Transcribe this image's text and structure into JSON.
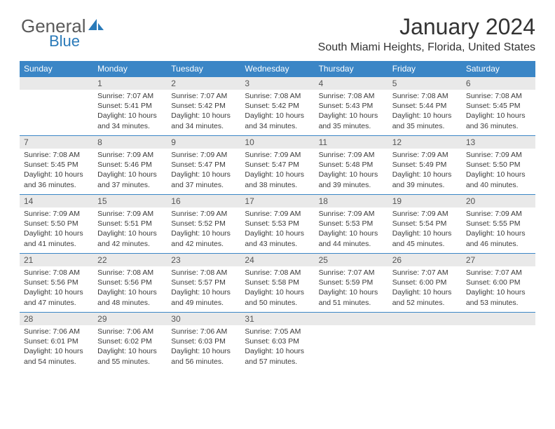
{
  "brand": {
    "text1": "General",
    "text2": "Blue",
    "color1": "#5a5a5a",
    "color2": "#2a7ab9"
  },
  "title": "January 2024",
  "location": "South Miami Heights, Florida, United States",
  "header_bg": "#3b86c6",
  "header_fg": "#ffffff",
  "daynum_bg": "#e9e9e9",
  "border_color": "#3b86c6",
  "body_font_size": 10.5,
  "columns": [
    "Sunday",
    "Monday",
    "Tuesday",
    "Wednesday",
    "Thursday",
    "Friday",
    "Saturday"
  ],
  "weeks": [
    [
      {
        "n": "",
        "sunrise": "",
        "sunset": "",
        "daylight": ""
      },
      {
        "n": "1",
        "sunrise": "Sunrise: 7:07 AM",
        "sunset": "Sunset: 5:41 PM",
        "daylight": "Daylight: 10 hours and 34 minutes."
      },
      {
        "n": "2",
        "sunrise": "Sunrise: 7:07 AM",
        "sunset": "Sunset: 5:42 PM",
        "daylight": "Daylight: 10 hours and 34 minutes."
      },
      {
        "n": "3",
        "sunrise": "Sunrise: 7:08 AM",
        "sunset": "Sunset: 5:42 PM",
        "daylight": "Daylight: 10 hours and 34 minutes."
      },
      {
        "n": "4",
        "sunrise": "Sunrise: 7:08 AM",
        "sunset": "Sunset: 5:43 PM",
        "daylight": "Daylight: 10 hours and 35 minutes."
      },
      {
        "n": "5",
        "sunrise": "Sunrise: 7:08 AM",
        "sunset": "Sunset: 5:44 PM",
        "daylight": "Daylight: 10 hours and 35 minutes."
      },
      {
        "n": "6",
        "sunrise": "Sunrise: 7:08 AM",
        "sunset": "Sunset: 5:45 PM",
        "daylight": "Daylight: 10 hours and 36 minutes."
      }
    ],
    [
      {
        "n": "7",
        "sunrise": "Sunrise: 7:08 AM",
        "sunset": "Sunset: 5:45 PM",
        "daylight": "Daylight: 10 hours and 36 minutes."
      },
      {
        "n": "8",
        "sunrise": "Sunrise: 7:09 AM",
        "sunset": "Sunset: 5:46 PM",
        "daylight": "Daylight: 10 hours and 37 minutes."
      },
      {
        "n": "9",
        "sunrise": "Sunrise: 7:09 AM",
        "sunset": "Sunset: 5:47 PM",
        "daylight": "Daylight: 10 hours and 37 minutes."
      },
      {
        "n": "10",
        "sunrise": "Sunrise: 7:09 AM",
        "sunset": "Sunset: 5:47 PM",
        "daylight": "Daylight: 10 hours and 38 minutes."
      },
      {
        "n": "11",
        "sunrise": "Sunrise: 7:09 AM",
        "sunset": "Sunset: 5:48 PM",
        "daylight": "Daylight: 10 hours and 39 minutes."
      },
      {
        "n": "12",
        "sunrise": "Sunrise: 7:09 AM",
        "sunset": "Sunset: 5:49 PM",
        "daylight": "Daylight: 10 hours and 39 minutes."
      },
      {
        "n": "13",
        "sunrise": "Sunrise: 7:09 AM",
        "sunset": "Sunset: 5:50 PM",
        "daylight": "Daylight: 10 hours and 40 minutes."
      }
    ],
    [
      {
        "n": "14",
        "sunrise": "Sunrise: 7:09 AM",
        "sunset": "Sunset: 5:50 PM",
        "daylight": "Daylight: 10 hours and 41 minutes."
      },
      {
        "n": "15",
        "sunrise": "Sunrise: 7:09 AM",
        "sunset": "Sunset: 5:51 PM",
        "daylight": "Daylight: 10 hours and 42 minutes."
      },
      {
        "n": "16",
        "sunrise": "Sunrise: 7:09 AM",
        "sunset": "Sunset: 5:52 PM",
        "daylight": "Daylight: 10 hours and 42 minutes."
      },
      {
        "n": "17",
        "sunrise": "Sunrise: 7:09 AM",
        "sunset": "Sunset: 5:53 PM",
        "daylight": "Daylight: 10 hours and 43 minutes."
      },
      {
        "n": "18",
        "sunrise": "Sunrise: 7:09 AM",
        "sunset": "Sunset: 5:53 PM",
        "daylight": "Daylight: 10 hours and 44 minutes."
      },
      {
        "n": "19",
        "sunrise": "Sunrise: 7:09 AM",
        "sunset": "Sunset: 5:54 PM",
        "daylight": "Daylight: 10 hours and 45 minutes."
      },
      {
        "n": "20",
        "sunrise": "Sunrise: 7:09 AM",
        "sunset": "Sunset: 5:55 PM",
        "daylight": "Daylight: 10 hours and 46 minutes."
      }
    ],
    [
      {
        "n": "21",
        "sunrise": "Sunrise: 7:08 AM",
        "sunset": "Sunset: 5:56 PM",
        "daylight": "Daylight: 10 hours and 47 minutes."
      },
      {
        "n": "22",
        "sunrise": "Sunrise: 7:08 AM",
        "sunset": "Sunset: 5:56 PM",
        "daylight": "Daylight: 10 hours and 48 minutes."
      },
      {
        "n": "23",
        "sunrise": "Sunrise: 7:08 AM",
        "sunset": "Sunset: 5:57 PM",
        "daylight": "Daylight: 10 hours and 49 minutes."
      },
      {
        "n": "24",
        "sunrise": "Sunrise: 7:08 AM",
        "sunset": "Sunset: 5:58 PM",
        "daylight": "Daylight: 10 hours and 50 minutes."
      },
      {
        "n": "25",
        "sunrise": "Sunrise: 7:07 AM",
        "sunset": "Sunset: 5:59 PM",
        "daylight": "Daylight: 10 hours and 51 minutes."
      },
      {
        "n": "26",
        "sunrise": "Sunrise: 7:07 AM",
        "sunset": "Sunset: 6:00 PM",
        "daylight": "Daylight: 10 hours and 52 minutes."
      },
      {
        "n": "27",
        "sunrise": "Sunrise: 7:07 AM",
        "sunset": "Sunset: 6:00 PM",
        "daylight": "Daylight: 10 hours and 53 minutes."
      }
    ],
    [
      {
        "n": "28",
        "sunrise": "Sunrise: 7:06 AM",
        "sunset": "Sunset: 6:01 PM",
        "daylight": "Daylight: 10 hours and 54 minutes."
      },
      {
        "n": "29",
        "sunrise": "Sunrise: 7:06 AM",
        "sunset": "Sunset: 6:02 PM",
        "daylight": "Daylight: 10 hours and 55 minutes."
      },
      {
        "n": "30",
        "sunrise": "Sunrise: 7:06 AM",
        "sunset": "Sunset: 6:03 PM",
        "daylight": "Daylight: 10 hours and 56 minutes."
      },
      {
        "n": "31",
        "sunrise": "Sunrise: 7:05 AM",
        "sunset": "Sunset: 6:03 PM",
        "daylight": "Daylight: 10 hours and 57 minutes."
      },
      {
        "n": "",
        "sunrise": "",
        "sunset": "",
        "daylight": ""
      },
      {
        "n": "",
        "sunrise": "",
        "sunset": "",
        "daylight": ""
      },
      {
        "n": "",
        "sunrise": "",
        "sunset": "",
        "daylight": ""
      }
    ]
  ]
}
